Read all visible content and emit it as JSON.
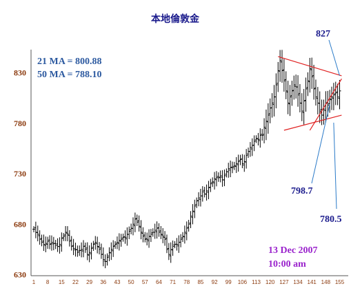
{
  "chart_data": {
    "type": "ohlc",
    "title": "本地倫敦金",
    "ylim": [
      630,
      850
    ],
    "yticks": [
      630,
      680,
      730,
      780,
      830
    ],
    "xticks": [
      "1",
      "8",
      "15",
      "22",
      "29",
      "36",
      "43",
      "50",
      "57",
      "64",
      "71",
      "78",
      "85",
      "92",
      "99",
      "106",
      "113",
      "120",
      "127",
      "134",
      "141",
      "148",
      "155"
    ],
    "ma_labels": [
      "21 MA = 800.88",
      "50 MA = 788.10"
    ],
    "annotations": [
      {
        "label": "827",
        "index": 155,
        "value": 827
      },
      {
        "label": "798.7",
        "index": 150,
        "value": 798.7
      },
      {
        "label": "780.5",
        "index": 152,
        "value": 780.5
      }
    ],
    "date_label": [
      "13 Dec 2007",
      "10:00 am"
    ],
    "trendlines": [
      {
        "from": [
          124,
          846
        ],
        "to": [
          156,
          827
        ]
      },
      {
        "from": [
          127,
          773
        ],
        "to": [
          156,
          788
        ]
      },
      {
        "from": [
          140,
          773
        ],
        "to": [
          156,
          824
        ]
      }
    ],
    "close": [
      675,
      672,
      670,
      665,
      662,
      660,
      661,
      663,
      660,
      662,
      661,
      659,
      658,
      660,
      666,
      668,
      672,
      670,
      663,
      658,
      656,
      655,
      652,
      654,
      655,
      658,
      655,
      650,
      652,
      656,
      660,
      662,
      658,
      655,
      650,
      645,
      643,
      647,
      652,
      655,
      658,
      660,
      662,
      664,
      665,
      667,
      667,
      670,
      673,
      676,
      680,
      685,
      682,
      678,
      672,
      668,
      665,
      665,
      668,
      670,
      672,
      674,
      676,
      672,
      670,
      668,
      665,
      655,
      650,
      655,
      658,
      660,
      660,
      662,
      665,
      668,
      672,
      676,
      680,
      688,
      693,
      698,
      703,
      706,
      708,
      712,
      710,
      713,
      716,
      720,
      722,
      725,
      726,
      726,
      728,
      724,
      728,
      732,
      735,
      736,
      736,
      738,
      740,
      742,
      744,
      740,
      742,
      748,
      752,
      756,
      758,
      762,
      765,
      764,
      768,
      768,
      776,
      782,
      788,
      795,
      800,
      806,
      818,
      832,
      842,
      832,
      822,
      812,
      800,
      806,
      812,
      818,
      816,
      808,
      800,
      792,
      802,
      814,
      822,
      834,
      826,
      814,
      806,
      800,
      792,
      788,
      794,
      800,
      798,
      804,
      806,
      808,
      810,
      806,
      812
    ]
  }
}
